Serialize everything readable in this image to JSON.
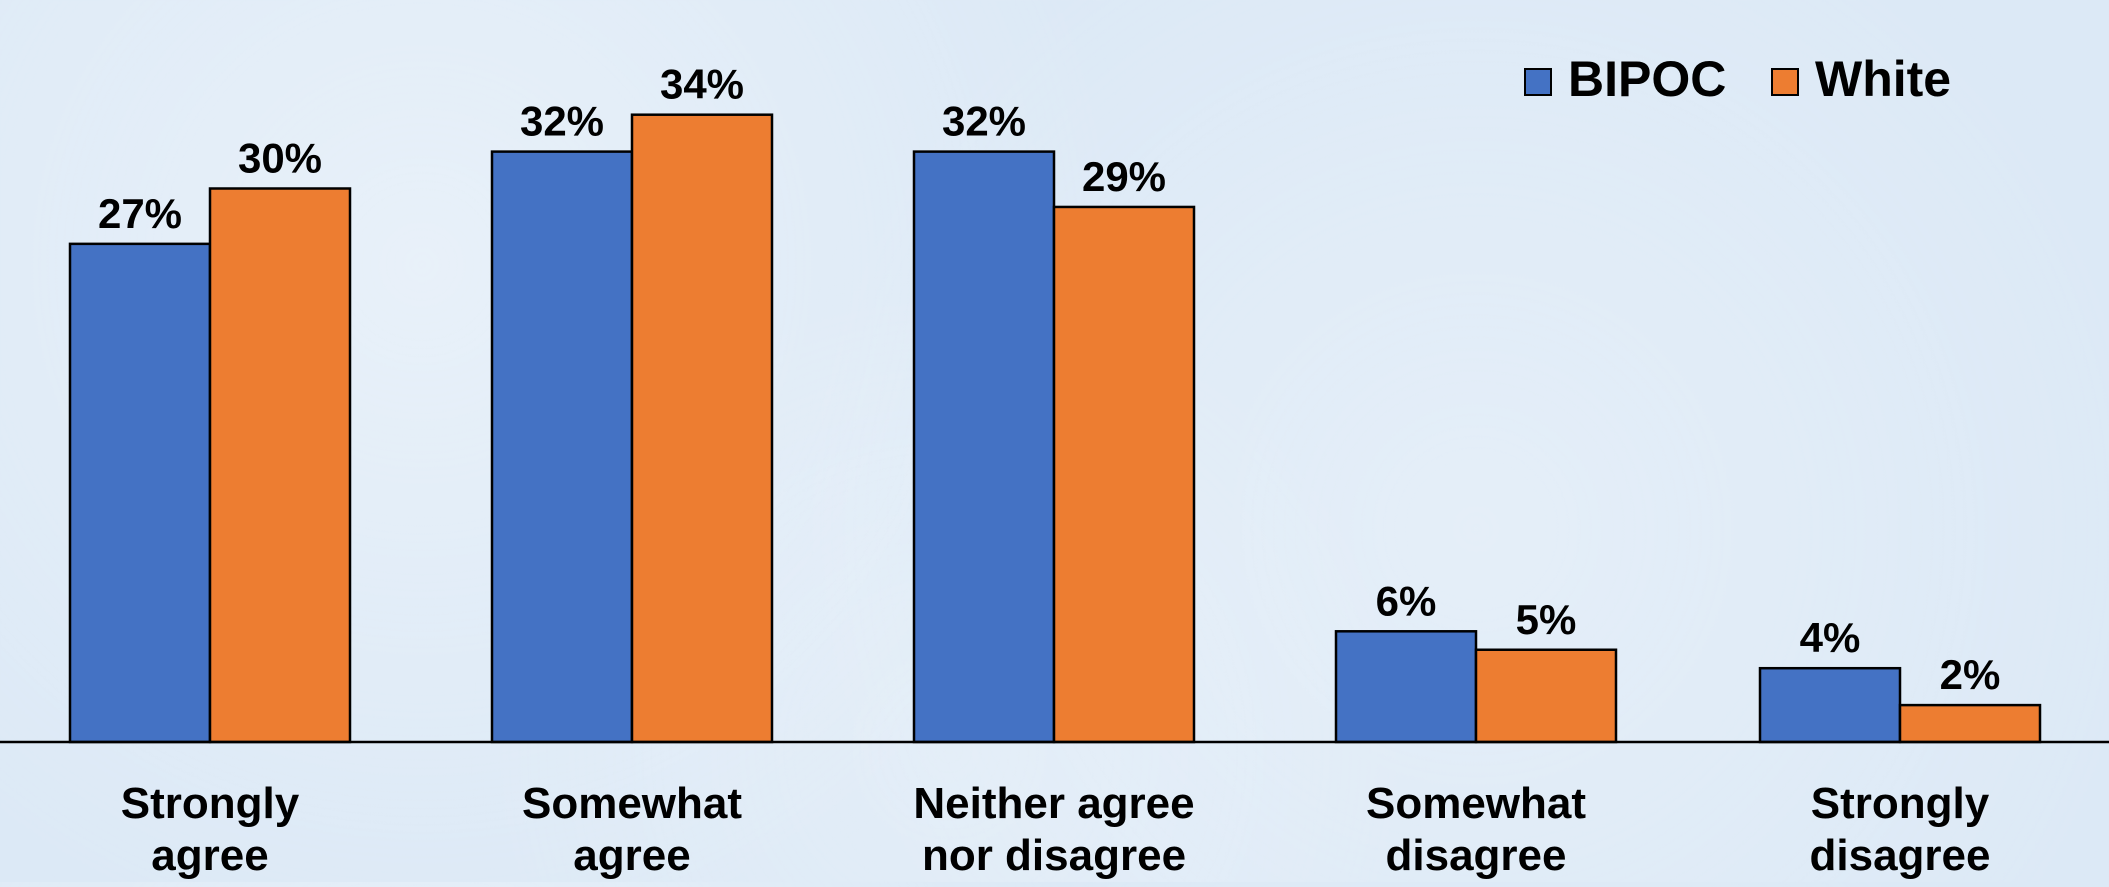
{
  "chart_data": {
    "type": "bar",
    "categories": [
      [
        "Strongly",
        "agree"
      ],
      [
        "Somewhat",
        "agree"
      ],
      [
        "Neither agree",
        "nor disagree"
      ],
      [
        "Somewhat",
        "disagree"
      ],
      [
        "Strongly",
        "disagree"
      ]
    ],
    "series": [
      {
        "name": "BIPOC",
        "color": "#4472c4",
        "values": [
          27,
          32,
          32,
          6,
          4
        ],
        "labels": [
          "27%",
          "32%",
          "32%",
          "6%",
          "4%"
        ]
      },
      {
        "name": "White",
        "color": "#ed7d31",
        "values": [
          30,
          34,
          29,
          5,
          2
        ],
        "labels": [
          "30%",
          "34%",
          "29%",
          "5%",
          "2%"
        ]
      }
    ],
    "ylim": [
      0,
      37.5
    ],
    "grid": false,
    "legend_position": "top-right",
    "bar_outline_color": "#000000",
    "axis_color": "#000000"
  }
}
